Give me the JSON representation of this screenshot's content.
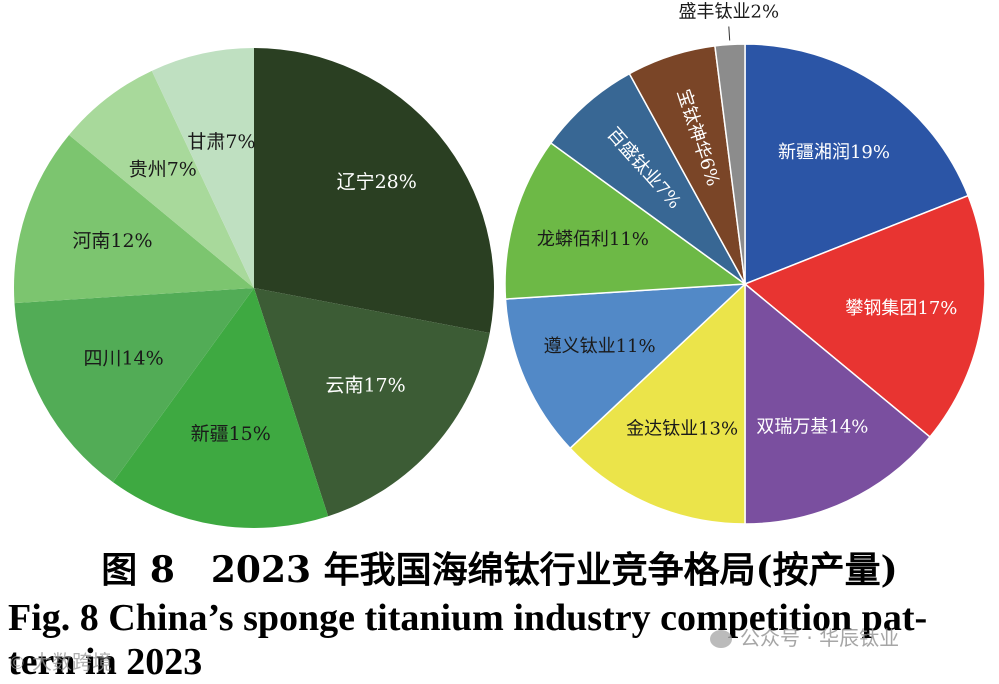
{
  "chart_data": [
    {
      "type": "pie",
      "title": "",
      "start": "12 o'clock",
      "direction": "clockwise",
      "slices": [
        {
          "label": "辽宁",
          "value": 28,
          "display": "辽宁28%",
          "color": "#2a3f22",
          "text_color": "#ffffff"
        },
        {
          "label": "云南",
          "value": 17,
          "display": "云南17%",
          "color": "#3c5c35",
          "text_color": "#ffffff"
        },
        {
          "label": "新疆",
          "value": 15,
          "display": "新疆15%",
          "color": "#3ea941",
          "text_color": "#1a1a1a"
        },
        {
          "label": "四川",
          "value": 14,
          "display": "四川14%",
          "color": "#52ac56",
          "text_color": "#1a1a1a"
        },
        {
          "label": "河南",
          "value": 12,
          "display": "河南12%",
          "color": "#7cc56f",
          "text_color": "#1a1a1a"
        },
        {
          "label": "贵州",
          "value": 7,
          "display": "贵州7%",
          "color": "#a8d99b",
          "text_color": "#1a1a1a"
        },
        {
          "label": "甘肃",
          "value": 7,
          "display": "甘肃7%",
          "color": "#bfe0c1",
          "text_color": "#1a1a1a"
        }
      ]
    },
    {
      "type": "pie",
      "title": "",
      "start": "12 o'clock",
      "direction": "clockwise",
      "slices": [
        {
          "label": "新疆湘润",
          "value": 19,
          "display": "新疆湘润19%",
          "color": "#2b55a6",
          "text_color": "#ffffff"
        },
        {
          "label": "攀钢集团",
          "value": 17,
          "display": "攀钢集团17%",
          "color": "#e83431",
          "text_color": "#ffffff"
        },
        {
          "label": "双瑞万基",
          "value": 14,
          "display": "双瑞万基14%",
          "color": "#7a4f9f",
          "text_color": "#ffffff"
        },
        {
          "label": "金达钛业",
          "value": 13,
          "display": "金达钛业13%",
          "color": "#ebe44a",
          "text_color": "#1a1a1a"
        },
        {
          "label": "遵义钛业",
          "value": 11,
          "display": "遵义钛业11%",
          "color": "#5289c7",
          "text_color": "#1a1a1a"
        },
        {
          "label": "龙蟒佰利",
          "value": 11,
          "display": "龙蟒佰利11%",
          "color": "#6db946",
          "text_color": "#1a1a1a"
        },
        {
          "label": "百盛钛业",
          "value": 7,
          "display": "百盛钛业7%",
          "color": "#386794",
          "text_color": "#ffffff"
        },
        {
          "label": "宝钛神华",
          "value": 6,
          "display": "宝钛神华6%",
          "color": "#7a4527",
          "text_color": "#ffffff"
        },
        {
          "label": "盛丰钛业",
          "value": 2,
          "display": "盛丰钛业2%",
          "color": "#8c8c8c",
          "text_color": "#1a1a1a"
        }
      ]
    }
  ],
  "caption": {
    "zh": "图 8　2023 年我国海绵钛行业竞争格局(按产量)",
    "en_line1": "Fig. 8   China’s sponge titanium industry competition pat-",
    "en_line2": "tern in 2023"
  },
  "watermarks": {
    "left_text": "大数跨境",
    "left_glyph": "©",
    "right_text": "公众号 · 华辰钛业"
  }
}
